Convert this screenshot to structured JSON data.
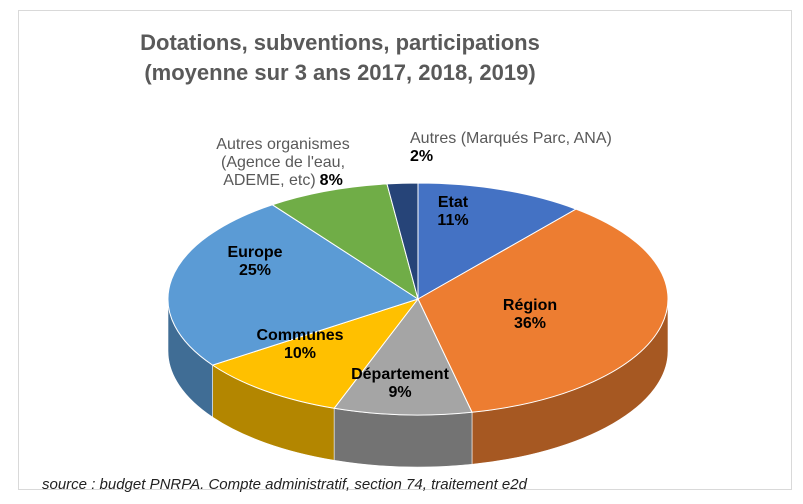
{
  "chart_data": {
    "type": "pie3d",
    "title": "Dotations, subventions, participations",
    "subtitle": "(moyenne sur 3 ans 2017, 2018, 2019)",
    "categories": [
      "Etat",
      "Région",
      "Département",
      "Communes",
      "Europe",
      "Autres organismes (Agence de l'eau, ADEME, etc)",
      "Autres (Marqués Parc, ANA)"
    ],
    "values": [
      11,
      36,
      9,
      10,
      25,
      8,
      2
    ],
    "value_labels": [
      "11%",
      "36%",
      "9%",
      "10%",
      "25%",
      "8%",
      "2%"
    ],
    "colors": [
      "#4472c4",
      "#ed7d31",
      "#a5a5a5",
      "#ffc000",
      "#5b9bd5",
      "#70ad47",
      "#264478"
    ],
    "source": "source : budget PNRPA. Compte administratif, section 74, traitement e2d"
  }
}
